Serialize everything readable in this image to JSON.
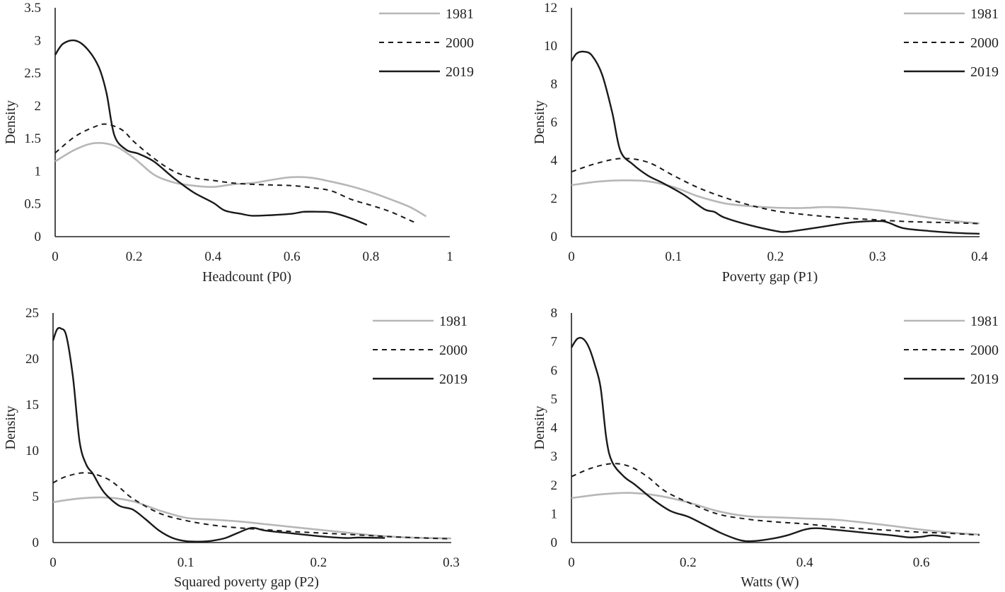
{
  "colors": {
    "s1981": "#b7b7b7",
    "s2000": "#1a1a1a",
    "s2019": "#1a1a1a",
    "axis": "#222222"
  },
  "chart_data": [
    {
      "type": "line",
      "title": "",
      "xlabel": "Headcount (P0)",
      "ylabel": "Density",
      "xlim": [
        0,
        1
      ],
      "ylim": [
        0,
        3.5
      ],
      "xticks": [
        "0",
        "0.2",
        "0.4",
        "0.6",
        "0.8",
        "1"
      ],
      "yticks": [
        "0",
        "0.5",
        "1",
        "1.5",
        "2",
        "2.5",
        "3",
        "3.5"
      ],
      "legend_position": "top-right",
      "series": [
        {
          "name": "1981",
          "style": "solid-grey",
          "points": [
            [
              0,
              1.15
            ],
            [
              0.05,
              1.33
            ],
            [
              0.1,
              1.43
            ],
            [
              0.15,
              1.39
            ],
            [
              0.2,
              1.2
            ],
            [
              0.25,
              0.95
            ],
            [
              0.3,
              0.83
            ],
            [
              0.35,
              0.78
            ],
            [
              0.4,
              0.76
            ],
            [
              0.45,
              0.8
            ],
            [
              0.5,
              0.82
            ],
            [
              0.55,
              0.87
            ],
            [
              0.6,
              0.91
            ],
            [
              0.65,
              0.9
            ],
            [
              0.7,
              0.84
            ],
            [
              0.75,
              0.77
            ],
            [
              0.8,
              0.68
            ],
            [
              0.85,
              0.57
            ],
            [
              0.9,
              0.45
            ],
            [
              0.94,
              0.31
            ]
          ]
        },
        {
          "name": "2000",
          "style": "dashed",
          "points": [
            [
              0,
              1.28
            ],
            [
              0.05,
              1.53
            ],
            [
              0.1,
              1.68
            ],
            [
              0.13,
              1.72
            ],
            [
              0.17,
              1.63
            ],
            [
              0.2,
              1.45
            ],
            [
              0.25,
              1.2
            ],
            [
              0.3,
              1.0
            ],
            [
              0.35,
              0.9
            ],
            [
              0.4,
              0.86
            ],
            [
              0.45,
              0.82
            ],
            [
              0.5,
              0.8
            ],
            [
              0.55,
              0.79
            ],
            [
              0.6,
              0.78
            ],
            [
              0.65,
              0.75
            ],
            [
              0.7,
              0.7
            ],
            [
              0.75,
              0.57
            ],
            [
              0.8,
              0.48
            ],
            [
              0.85,
              0.38
            ],
            [
              0.91,
              0.22
            ]
          ]
        },
        {
          "name": "2019",
          "style": "solid-black",
          "points": [
            [
              0,
              2.78
            ],
            [
              0.02,
              2.95
            ],
            [
              0.05,
              3.0
            ],
            [
              0.08,
              2.88
            ],
            [
              0.11,
              2.6
            ],
            [
              0.13,
              2.2
            ],
            [
              0.15,
              1.55
            ],
            [
              0.18,
              1.33
            ],
            [
              0.21,
              1.27
            ],
            [
              0.25,
              1.15
            ],
            [
              0.3,
              0.9
            ],
            [
              0.35,
              0.68
            ],
            [
              0.4,
              0.52
            ],
            [
              0.43,
              0.4
            ],
            [
              0.47,
              0.35
            ],
            [
              0.5,
              0.32
            ],
            [
              0.55,
              0.33
            ],
            [
              0.6,
              0.35
            ],
            [
              0.63,
              0.38
            ],
            [
              0.67,
              0.38
            ],
            [
              0.7,
              0.37
            ],
            [
              0.75,
              0.28
            ],
            [
              0.79,
              0.18
            ]
          ]
        }
      ]
    },
    {
      "type": "line",
      "title": "",
      "xlabel": "Poverty gap (P1)",
      "ylabel": "Density",
      "xlim": [
        0,
        0.4
      ],
      "ylim": [
        0,
        12
      ],
      "xticks": [
        "0",
        "0.1",
        "0.2",
        "0.3",
        "0.4"
      ],
      "yticks": [
        "0",
        "2",
        "4",
        "6",
        "8",
        "10",
        "12"
      ],
      "legend_position": "top-right",
      "series": [
        {
          "name": "1981",
          "style": "solid-grey",
          "points": [
            [
              0,
              2.7
            ],
            [
              0.025,
              2.88
            ],
            [
              0.05,
              2.95
            ],
            [
              0.075,
              2.9
            ],
            [
              0.1,
              2.6
            ],
            [
              0.125,
              2.1
            ],
            [
              0.15,
              1.75
            ],
            [
              0.175,
              1.6
            ],
            [
              0.2,
              1.52
            ],
            [
              0.225,
              1.5
            ],
            [
              0.25,
              1.55
            ],
            [
              0.275,
              1.5
            ],
            [
              0.3,
              1.38
            ],
            [
              0.325,
              1.2
            ],
            [
              0.35,
              1.0
            ],
            [
              0.375,
              0.82
            ],
            [
              0.4,
              0.7
            ]
          ]
        },
        {
          "name": "2000",
          "style": "dashed",
          "points": [
            [
              0,
              3.4
            ],
            [
              0.025,
              3.85
            ],
            [
              0.05,
              4.1
            ],
            [
              0.075,
              3.9
            ],
            [
              0.1,
              3.2
            ],
            [
              0.125,
              2.55
            ],
            [
              0.15,
              2.05
            ],
            [
              0.175,
              1.65
            ],
            [
              0.2,
              1.35
            ],
            [
              0.225,
              1.18
            ],
            [
              0.25,
              1.05
            ],
            [
              0.275,
              0.95
            ],
            [
              0.3,
              0.88
            ],
            [
              0.325,
              0.8
            ],
            [
              0.35,
              0.76
            ],
            [
              0.375,
              0.73
            ],
            [
              0.4,
              0.68
            ]
          ]
        },
        {
          "name": "2019",
          "style": "solid-black",
          "points": [
            [
              0,
              9.2
            ],
            [
              0.005,
              9.6
            ],
            [
              0.012,
              9.7
            ],
            [
              0.02,
              9.5
            ],
            [
              0.03,
              8.5
            ],
            [
              0.04,
              6.5
            ],
            [
              0.048,
              4.5
            ],
            [
              0.06,
              3.8
            ],
            [
              0.075,
              3.2
            ],
            [
              0.09,
              2.8
            ],
            [
              0.11,
              2.2
            ],
            [
              0.13,
              1.45
            ],
            [
              0.14,
              1.3
            ],
            [
              0.15,
              1.0
            ],
            [
              0.175,
              0.6
            ],
            [
              0.2,
              0.3
            ],
            [
              0.21,
              0.25
            ],
            [
              0.225,
              0.35
            ],
            [
              0.25,
              0.55
            ],
            [
              0.275,
              0.75
            ],
            [
              0.3,
              0.82
            ],
            [
              0.31,
              0.75
            ],
            [
              0.325,
              0.45
            ],
            [
              0.35,
              0.3
            ],
            [
              0.375,
              0.2
            ],
            [
              0.4,
              0.15
            ]
          ]
        }
      ]
    },
    {
      "type": "line",
      "title": "",
      "xlabel": "Squared poverty gap (P2)",
      "ylabel": "Density",
      "xlim": [
        0,
        0.3
      ],
      "ylim": [
        0,
        25
      ],
      "xticks": [
        "0",
        "0.1",
        "0.2",
        "0.3"
      ],
      "yticks": [
        "0",
        "5",
        "10",
        "15",
        "20",
        "25"
      ],
      "legend_position": "top-right",
      "series": [
        {
          "name": "1981",
          "style": "solid-grey",
          "points": [
            [
              0,
              4.4
            ],
            [
              0.02,
              4.8
            ],
            [
              0.04,
              4.9
            ],
            [
              0.06,
              4.5
            ],
            [
              0.08,
              3.5
            ],
            [
              0.1,
              2.7
            ],
            [
              0.12,
              2.5
            ],
            [
              0.14,
              2.3
            ],
            [
              0.16,
              2.0
            ],
            [
              0.18,
              1.7
            ],
            [
              0.2,
              1.4
            ],
            [
              0.22,
              1.1
            ],
            [
              0.24,
              0.8
            ],
            [
              0.26,
              0.6
            ],
            [
              0.28,
              0.5
            ],
            [
              0.3,
              0.45
            ]
          ]
        },
        {
          "name": "2000",
          "style": "dashed",
          "points": [
            [
              0,
              6.5
            ],
            [
              0.01,
              7.2
            ],
            [
              0.025,
              7.6
            ],
            [
              0.04,
              7.0
            ],
            [
              0.05,
              6.0
            ],
            [
              0.06,
              4.8
            ],
            [
              0.08,
              3.2
            ],
            [
              0.1,
              2.4
            ],
            [
              0.12,
              1.9
            ],
            [
              0.14,
              1.6
            ],
            [
              0.16,
              1.4
            ],
            [
              0.18,
              1.2
            ],
            [
              0.2,
              1.05
            ],
            [
              0.22,
              0.9
            ],
            [
              0.24,
              0.75
            ],
            [
              0.26,
              0.6
            ],
            [
              0.3,
              0.4
            ]
          ]
        },
        {
          "name": "2019",
          "style": "solid-black",
          "points": [
            [
              0,
              22
            ],
            [
              0.003,
              23.2
            ],
            [
              0.006,
              23.3
            ],
            [
              0.01,
              22.5
            ],
            [
              0.015,
              18
            ],
            [
              0.02,
              11
            ],
            [
              0.025,
              8.5
            ],
            [
              0.03,
              7.5
            ],
            [
              0.035,
              6.2
            ],
            [
              0.04,
              5.2
            ],
            [
              0.05,
              4.0
            ],
            [
              0.06,
              3.6
            ],
            [
              0.07,
              2.5
            ],
            [
              0.08,
              1.3
            ],
            [
              0.09,
              0.5
            ],
            [
              0.1,
              0.15
            ],
            [
              0.11,
              0.1
            ],
            [
              0.12,
              0.2
            ],
            [
              0.13,
              0.5
            ],
            [
              0.14,
              1.1
            ],
            [
              0.15,
              1.6
            ],
            [
              0.16,
              1.3
            ],
            [
              0.18,
              1.0
            ],
            [
              0.2,
              0.7
            ],
            [
              0.22,
              0.5
            ],
            [
              0.23,
              0.55
            ],
            [
              0.25,
              0.5
            ]
          ]
        }
      ]
    },
    {
      "type": "line",
      "title": "",
      "xlabel": "Watts (W)",
      "ylabel": "Density",
      "xlim": [
        0,
        0.7
      ],
      "ylim": [
        0,
        8
      ],
      "xticks": [
        "0",
        "0.2",
        "0.4",
        "0.6"
      ],
      "yticks": [
        "0",
        "1",
        "2",
        "3",
        "4",
        "5",
        "6",
        "7",
        "8"
      ],
      "legend_position": "top-right",
      "series": [
        {
          "name": "1981",
          "style": "solid-grey",
          "points": [
            [
              0,
              1.55
            ],
            [
              0.05,
              1.68
            ],
            [
              0.1,
              1.73
            ],
            [
              0.15,
              1.63
            ],
            [
              0.2,
              1.4
            ],
            [
              0.25,
              1.1
            ],
            [
              0.3,
              0.92
            ],
            [
              0.35,
              0.88
            ],
            [
              0.4,
              0.84
            ],
            [
              0.45,
              0.8
            ],
            [
              0.5,
              0.7
            ],
            [
              0.55,
              0.58
            ],
            [
              0.6,
              0.45
            ],
            [
              0.65,
              0.35
            ],
            [
              0.7,
              0.28
            ]
          ]
        },
        {
          "name": "2000",
          "style": "dashed",
          "points": [
            [
              0,
              2.3
            ],
            [
              0.035,
              2.6
            ],
            [
              0.07,
              2.75
            ],
            [
              0.1,
              2.65
            ],
            [
              0.13,
              2.3
            ],
            [
              0.16,
              1.8
            ],
            [
              0.2,
              1.4
            ],
            [
              0.25,
              1.0
            ],
            [
              0.3,
              0.82
            ],
            [
              0.35,
              0.72
            ],
            [
              0.4,
              0.65
            ],
            [
              0.45,
              0.55
            ],
            [
              0.5,
              0.48
            ],
            [
              0.55,
              0.42
            ],
            [
              0.6,
              0.36
            ],
            [
              0.65,
              0.32
            ],
            [
              0.7,
              0.26
            ]
          ]
        },
        {
          "name": "2019",
          "style": "solid-black",
          "points": [
            [
              0,
              6.8
            ],
            [
              0.01,
              7.1
            ],
            [
              0.02,
              7.1
            ],
            [
              0.03,
              6.8
            ],
            [
              0.04,
              6.2
            ],
            [
              0.05,
              5.4
            ],
            [
              0.06,
              3.6
            ],
            [
              0.07,
              2.8
            ],
            [
              0.09,
              2.3
            ],
            [
              0.11,
              2.0
            ],
            [
              0.14,
              1.5
            ],
            [
              0.17,
              1.1
            ],
            [
              0.2,
              0.9
            ],
            [
              0.23,
              0.6
            ],
            [
              0.26,
              0.3
            ],
            [
              0.29,
              0.08
            ],
            [
              0.31,
              0.05
            ],
            [
              0.34,
              0.12
            ],
            [
              0.37,
              0.25
            ],
            [
              0.4,
              0.45
            ],
            [
              0.42,
              0.5
            ],
            [
              0.45,
              0.45
            ],
            [
              0.5,
              0.35
            ],
            [
              0.55,
              0.25
            ],
            [
              0.58,
              0.18
            ],
            [
              0.6,
              0.2
            ],
            [
              0.62,
              0.25
            ],
            [
              0.65,
              0.18
            ]
          ]
        }
      ]
    }
  ]
}
